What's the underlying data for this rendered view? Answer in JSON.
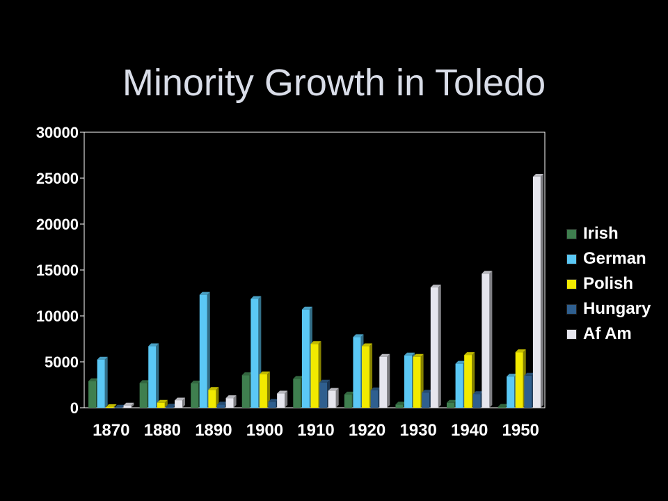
{
  "slide": {
    "title": "Minority Growth in Toledo"
  },
  "chart_data": {
    "type": "bar",
    "categories": [
      "1870",
      "1880",
      "1890",
      "1900",
      "1910",
      "1920",
      "1930",
      "1940",
      "1950"
    ],
    "ylim": [
      0,
      30000
    ],
    "yticks": [
      "0",
      "5000",
      "10000",
      "15000",
      "20000",
      "25000",
      "30000"
    ],
    "grid": false,
    "legend_position": "right",
    "series": [
      {
        "name": "Irish",
        "color": "#3f7f4f",
        "values": [
          2900,
          2700,
          2650,
          3550,
          3150,
          1450,
          350,
          550,
          100
        ]
      },
      {
        "name": "German",
        "color": "#5bc8f5",
        "values": [
          5250,
          6700,
          12300,
          11850,
          10700,
          7700,
          5700,
          4800,
          3400
        ]
      },
      {
        "name": "Polish",
        "color": "#f2ea00",
        "values": [
          80,
          550,
          1950,
          3650,
          6950,
          6700,
          5550,
          5750,
          6050
        ]
      },
      {
        "name": "Hungary",
        "color": "#2f5f8f",
        "values": [
          20,
          120,
          350,
          650,
          2750,
          1900,
          1650,
          1500,
          3500
        ]
      },
      {
        "name": "Af Am",
        "color": "#e6e6ee",
        "values": [
          250,
          800,
          1050,
          1550,
          1850,
          5550,
          13100,
          14600,
          25150
        ]
      }
    ]
  }
}
